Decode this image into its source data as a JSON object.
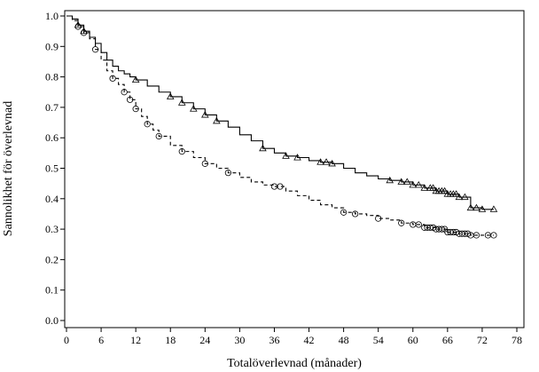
{
  "chart_data": {
    "type": "line",
    "xlabel": "Totalöverlevnad (månader)",
    "ylabel": "Sannolikhet för överlevnad",
    "xlim": [
      0,
      78
    ],
    "ylim": [
      0,
      1.0
    ],
    "x_ticks": [
      "0",
      "6",
      "12",
      "18",
      "24",
      "30",
      "36",
      "42",
      "48",
      "54",
      "60",
      "66",
      "72",
      "78"
    ],
    "y_ticks": [
      "0.0",
      "0.1",
      "0.2",
      "0.3",
      "0.4",
      "0.5",
      "0.6",
      "0.7",
      "0.8",
      "0.9",
      "1.0"
    ],
    "grid": false,
    "series": [
      {
        "line_style": "solid",
        "marker": "triangle",
        "color": "#000000",
        "points": [
          [
            0,
            1.0
          ],
          [
            1,
            0.99
          ],
          [
            2,
            0.97
          ],
          [
            3,
            0.95
          ],
          [
            4,
            0.93
          ],
          [
            5,
            0.91
          ],
          [
            6,
            0.88
          ],
          [
            7,
            0.855
          ],
          [
            8,
            0.835
          ],
          [
            9,
            0.82
          ],
          [
            10,
            0.81
          ],
          [
            11,
            0.8
          ],
          [
            12,
            0.79
          ],
          [
            14,
            0.77
          ],
          [
            16,
            0.75
          ],
          [
            18,
            0.735
          ],
          [
            20,
            0.715
          ],
          [
            22,
            0.695
          ],
          [
            24,
            0.675
          ],
          [
            26,
            0.655
          ],
          [
            28,
            0.635
          ],
          [
            30,
            0.61
          ],
          [
            32,
            0.59
          ],
          [
            34,
            0.565
          ],
          [
            36,
            0.55
          ],
          [
            38,
            0.54
          ],
          [
            40,
            0.535
          ],
          [
            42,
            0.525
          ],
          [
            44,
            0.52
          ],
          [
            46,
            0.515
          ],
          [
            48,
            0.5
          ],
          [
            50,
            0.485
          ],
          [
            52,
            0.475
          ],
          [
            54,
            0.465
          ],
          [
            56,
            0.46
          ],
          [
            58,
            0.455
          ],
          [
            60,
            0.445
          ],
          [
            62,
            0.435
          ],
          [
            64,
            0.425
          ],
          [
            66,
            0.415
          ],
          [
            68,
            0.405
          ],
          [
            70,
            0.37
          ],
          [
            72,
            0.365
          ],
          [
            74,
            0.365
          ]
        ],
        "censor_x": [
          2,
          3,
          12,
          18,
          20,
          22,
          24,
          26,
          34,
          38,
          40,
          44,
          45,
          46,
          56,
          58,
          59,
          60,
          61,
          62,
          63,
          63.5,
          64,
          64.5,
          65,
          65.5,
          66,
          66.5,
          67,
          67.5,
          68,
          69,
          70,
          71,
          72,
          74
        ]
      },
      {
        "line_style": "dashed",
        "marker": "circle",
        "color": "#000000",
        "points": [
          [
            0,
            1.0
          ],
          [
            1,
            0.985
          ],
          [
            2,
            0.965
          ],
          [
            3,
            0.945
          ],
          [
            4,
            0.925
          ],
          [
            5,
            0.89
          ],
          [
            6,
            0.855
          ],
          [
            7,
            0.82
          ],
          [
            8,
            0.795
          ],
          [
            9,
            0.775
          ],
          [
            10,
            0.75
          ],
          [
            11,
            0.725
          ],
          [
            12,
            0.695
          ],
          [
            13,
            0.67
          ],
          [
            14,
            0.645
          ],
          [
            15,
            0.625
          ],
          [
            16,
            0.605
          ],
          [
            18,
            0.575
          ],
          [
            20,
            0.555
          ],
          [
            22,
            0.535
          ],
          [
            24,
            0.515
          ],
          [
            26,
            0.5
          ],
          [
            28,
            0.485
          ],
          [
            30,
            0.47
          ],
          [
            32,
            0.455
          ],
          [
            34,
            0.445
          ],
          [
            36,
            0.44
          ],
          [
            38,
            0.425
          ],
          [
            40,
            0.41
          ],
          [
            42,
            0.395
          ],
          [
            44,
            0.38
          ],
          [
            46,
            0.37
          ],
          [
            48,
            0.355
          ],
          [
            50,
            0.35
          ],
          [
            52,
            0.345
          ],
          [
            54,
            0.335
          ],
          [
            56,
            0.33
          ],
          [
            58,
            0.32
          ],
          [
            60,
            0.315
          ],
          [
            62,
            0.305
          ],
          [
            64,
            0.3
          ],
          [
            66,
            0.29
          ],
          [
            68,
            0.285
          ],
          [
            70,
            0.28
          ],
          [
            74,
            0.28
          ]
        ],
        "censor_x": [
          2,
          3,
          5,
          8,
          10,
          11,
          12,
          14,
          16,
          20,
          24,
          28,
          36,
          37,
          48,
          50,
          54,
          58,
          60,
          61,
          62,
          62.5,
          63,
          63.5,
          64,
          64.5,
          65,
          65.5,
          66,
          66.5,
          67,
          67.5,
          68,
          68.5,
          69,
          69.5,
          70,
          71,
          73,
          74
        ]
      }
    ]
  }
}
